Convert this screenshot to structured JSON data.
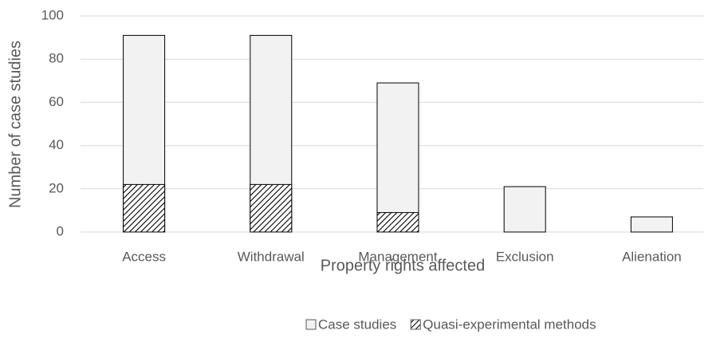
{
  "chart_data": {
    "type": "bar",
    "xlabel": "Property rights affected",
    "ylabel": "Number of case studies",
    "categories": [
      "Access",
      "Withdrawal",
      "Management",
      "Exclusion",
      "Alienation"
    ],
    "series": [
      {
        "name": "Case studies",
        "color": "#f2f2f2",
        "values": [
          91,
          91,
          69,
          21,
          7
        ]
      },
      {
        "name": "Quasi-experimental methods",
        "color": "hatch",
        "values": [
          22,
          22,
          9,
          0,
          0
        ]
      }
    ],
    "ylim": [
      0,
      100
    ],
    "yticks": [
      0,
      20,
      40,
      60,
      80,
      100
    ],
    "grid": true,
    "legend": "bottom"
  }
}
